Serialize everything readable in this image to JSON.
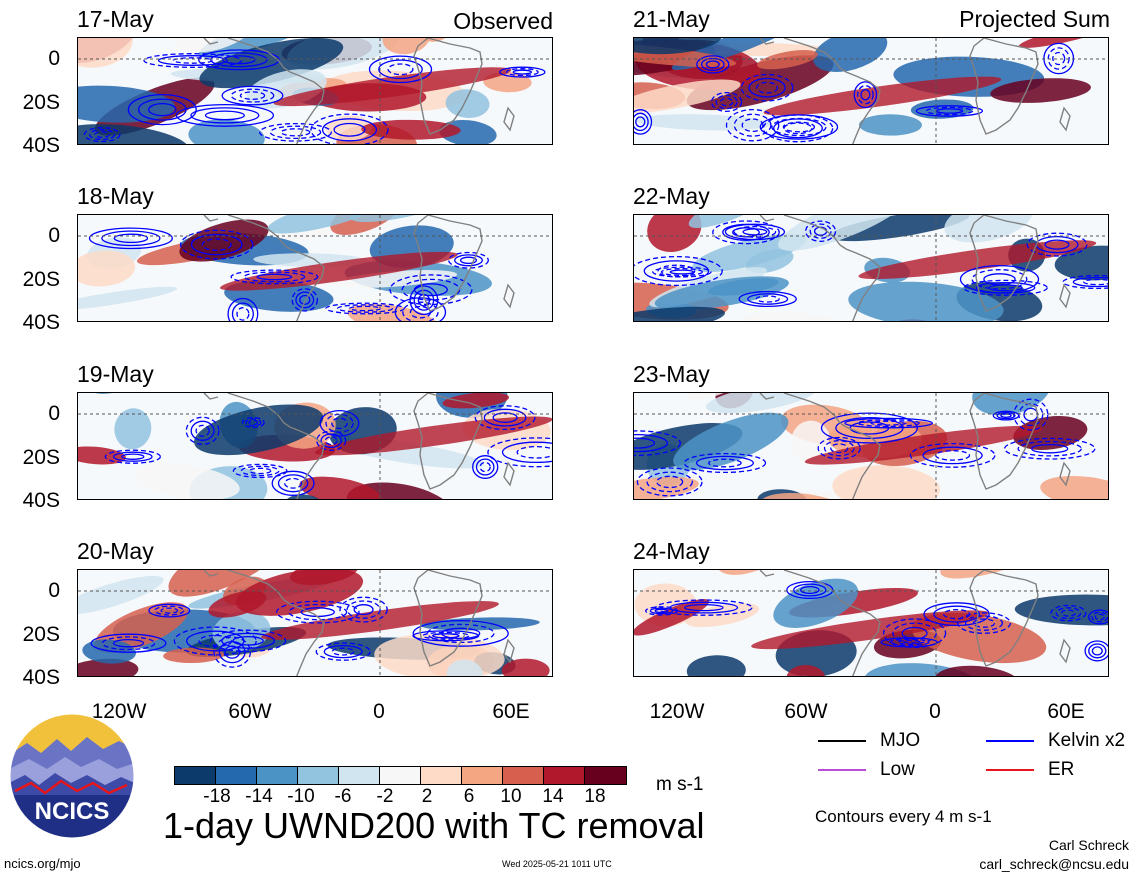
{
  "panels_left": [
    {
      "date": "17-May",
      "corner_label": "Observed"
    },
    {
      "date": "18-May",
      "corner_label": ""
    },
    {
      "date": "19-May",
      "corner_label": ""
    },
    {
      "date": "20-May",
      "corner_label": ""
    }
  ],
  "panels_right": [
    {
      "date": "21-May",
      "corner_label": "Projected Sum"
    },
    {
      "date": "22-May",
      "corner_label": ""
    },
    {
      "date": "23-May",
      "corner_label": ""
    },
    {
      "date": "24-May",
      "corner_label": ""
    }
  ],
  "lat_labels": [
    "0",
    "20S",
    "40S"
  ],
  "lon_labels": [
    "120W",
    "60W",
    "0",
    "60E"
  ],
  "colorbar": {
    "colors": [
      "#0b3a6b",
      "#2468ae",
      "#4c93c5",
      "#92c3df",
      "#d1e5f0",
      "#f7f7f7",
      "#fddbc7",
      "#f4a582",
      "#d6604d",
      "#b2182b",
      "#67001f"
    ],
    "ticks": [
      "-18",
      "-14",
      "-10",
      "-6",
      "-2",
      "2",
      "6",
      "10",
      "14",
      "18"
    ],
    "units": "m s-1"
  },
  "title": "1-day UWND200 with TC removal",
  "legend": [
    {
      "label": "MJO",
      "color": "#000000"
    },
    {
      "label": "Kelvin x2",
      "color": "#0000ff"
    },
    {
      "label": "Low",
      "color": "#b84fd6"
    },
    {
      "label": "ER",
      "color": "#e8161a"
    }
  ],
  "contour_note": "Contours every 4 m s-1",
  "author": "Carl Schreck",
  "email": "carl_schreck@ncsu.edu",
  "url": "ncics.org/mjo",
  "timestamp": "Wed 2025-05-21 1011 UTC",
  "logo_text": "NCICS",
  "colors": {
    "continent_outline": "#808080",
    "contour": "#0000ff",
    "reference_line": "#555555"
  }
}
